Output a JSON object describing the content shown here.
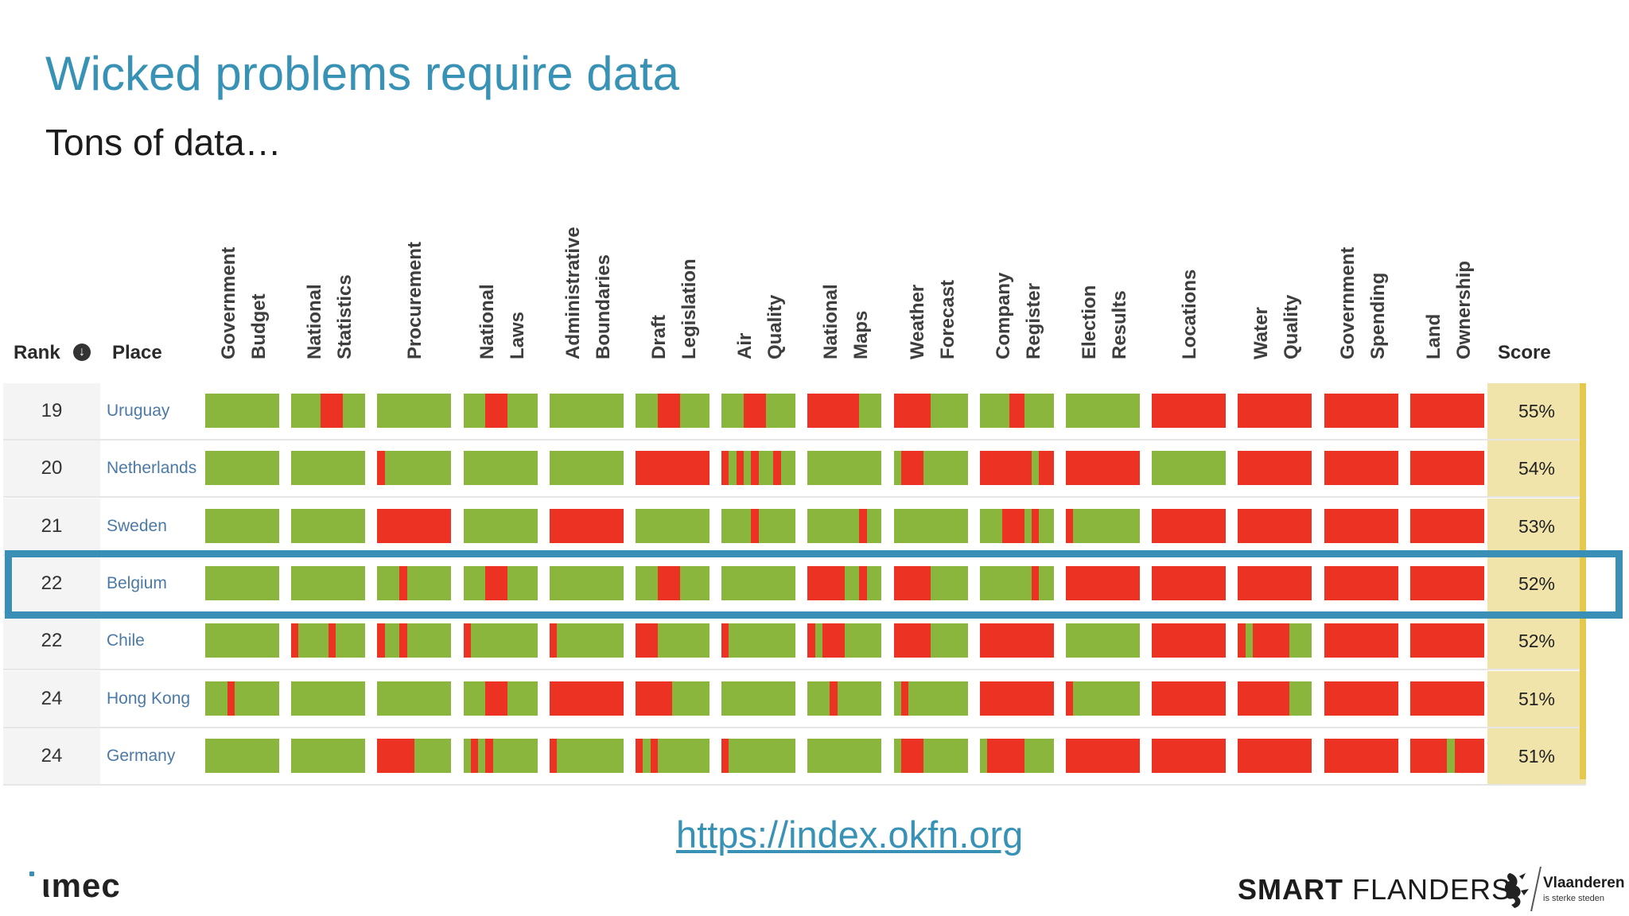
{
  "slide": {
    "title": "Wicked problems require data",
    "subtitle": "Tons of data…",
    "url": "https://index.okfn.org"
  },
  "table": {
    "headers": {
      "rank": "Rank",
      "place": "Place",
      "score": "Score"
    },
    "columns": [
      [
        "Government",
        "Budget"
      ],
      [
        "National",
        "Statistics"
      ],
      [
        "Procurement"
      ],
      [
        "National",
        "Laws"
      ],
      [
        "Administrative",
        "Boundaries"
      ],
      [
        "Draft",
        "Legislation"
      ],
      [
        "Air",
        "Quality"
      ],
      [
        "National",
        "Maps"
      ],
      [
        "Weather",
        "Forecast"
      ],
      [
        "Company",
        "Register"
      ],
      [
        "Election",
        "Results"
      ],
      [
        "Locations"
      ],
      [
        "Water",
        "Quality"
      ],
      [
        "Government",
        "Spending"
      ],
      [
        "Land",
        "Ownership"
      ]
    ],
    "highlighted_place": "Belgium",
    "rows": [
      {
        "rank": "19",
        "place": "Uruguay",
        "score": "55%",
        "bars": [
          "gggggggggg",
          "ggggrrrggg",
          "gggggggggg",
          "gggrrrgggg",
          "gggggggggg",
          "gggrrrgggg",
          "gggrrrgggg",
          "rrrrrrrggg",
          "rrrrrggggg",
          "ggggrrgggg",
          "gggggggggg",
          "rrrrrrrrrr",
          "rrrrrrrrrr",
          "rrrrrrrrrr",
          "rrrrrrrrrr"
        ]
      },
      {
        "rank": "20",
        "place": "Netherlands",
        "score": "54%",
        "bars": [
          "gggggggggg",
          "gggggggggg",
          "rggggggggg",
          "gggggggggg",
          "gggggggggg",
          "rrrrrrrrrr",
          "rgrgrggrgg",
          "gggggggggg",
          "grrrgggggg",
          "rrrrrrrgrr",
          "rrrrrrrrrr",
          "gggggggggg",
          "rrrrrrrrrr",
          "rrrrrrrrrr",
          "rrrrrrrrrr"
        ]
      },
      {
        "rank": "21",
        "place": "Sweden",
        "score": "53%",
        "bars": [
          "gggggggggg",
          "gggggggggg",
          "rrrrrrrrrr",
          "gggggggggg",
          "rrrrrrrrrr",
          "gggggggggg",
          "ggggrggggg",
          "gggggggrgg",
          "gggggggggg",
          "gggrrrgrgg",
          "rggggggggg",
          "rrrrrrrrrr",
          "rrrrrrrrrr",
          "rrrrrrrrrr",
          "rrrrrrrrrr"
        ]
      },
      {
        "rank": "22",
        "place": "Belgium",
        "score": "52%",
        "bars": [
          "gggggggggg",
          "gggggggggg",
          "gggrgggggg",
          "gggrrrgggg",
          "gggggggggg",
          "gggrrrgggg",
          "gggggggggg",
          "rrrrrggrgg",
          "rrrrrggggg",
          "gggggggrgg",
          "rrrrrrrrrr",
          "rrrrrrrrrr",
          "rrrrrrrrrr",
          "rrrrrrrrrr",
          "rrrrrrrrrr"
        ]
      },
      {
        "rank": "22",
        "place": "Chile",
        "score": "52%",
        "bars": [
          "gggggggggg",
          "rggggrgggg",
          "rggrgggggg",
          "rggggggggg",
          "rggggggggg",
          "rrrggggggg",
          "rggggggggg",
          "rgrrrggggg",
          "rrrrrggggg",
          "rrrrrrrrrr",
          "gggggggggg",
          "rrrrrrrrrr",
          "rgrrrrrggg",
          "rrrrrrrrrr",
          "rrrrrrrrrr"
        ]
      },
      {
        "rank": "24",
        "place": "Hong Kong",
        "score": "51%",
        "bars": [
          "gggrgggggg",
          "gggggggggg",
          "gggggggggg",
          "gggrrrgggg",
          "rrrrrrrrrr",
          "rrrrrggggg",
          "gggggggggg",
          "gggrgggggg",
          "grgggggggg",
          "rrrrrrrrrr",
          "rggggggggg",
          "rrrrrrrrrr",
          "rrrrrrrggg",
          "rrrrrrrrrr",
          "rrrrrrrrrr"
        ]
      },
      {
        "rank": "24",
        "place": "Germany",
        "score": "51%",
        "bars": [
          "gggggggggg",
          "gggggggggg",
          "rrrrrggggg",
          "grgrgggggg",
          "rggggggggg",
          "rgrggggggg",
          "rggggggggg",
          "gggggggggg",
          "grrrgggggg",
          "grrrrrgggg",
          "rrrrrrrrrr",
          "rrrrrrrrrr",
          "rrrrrrrrrr",
          "rrrrrrrrrr",
          "rrrrrgrrrr"
        ]
      }
    ]
  },
  "colors": {
    "green": "#8ab63d",
    "red": "#ec3323",
    "accent": "#3a8fb7",
    "score_bg": "#f1e4ab"
  },
  "logos": {
    "imec": "ιmec",
    "smart_flanders_bold": "SMART",
    "smart_flanders_rest": " FLANDERS",
    "vlaanderen": "Vlaanderen",
    "vlaanderen_tagline": "is sterke steden"
  }
}
